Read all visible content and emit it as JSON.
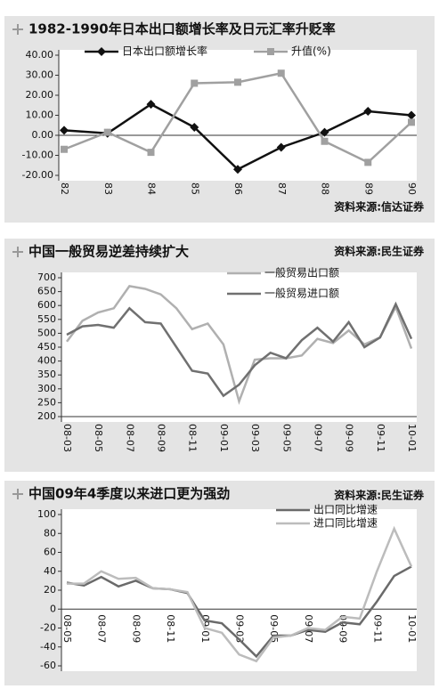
{
  "chart_data": [
    {
      "type": "line",
      "title": "1982-1990年日本出口额增长率及日元汇率升贬率",
      "source": "资料来源:信达证券",
      "categories": [
        "82",
        "83",
        "84",
        "85",
        "86",
        "87",
        "88",
        "89",
        "90"
      ],
      "series": [
        {
          "name": "日本出口额增长率",
          "color": "#111111",
          "marker": "diamond",
          "values": [
            2.5,
            1,
            15.5,
            4,
            -17,
            -6,
            1.5,
            12,
            10
          ]
        },
        {
          "name": "升值(%)",
          "color": "#a0a0a0",
          "marker": "square",
          "values": [
            -7,
            1.5,
            -8.5,
            26,
            26.5,
            31,
            -3,
            -13.5,
            6.5
          ]
        }
      ],
      "ylim": [
        -20,
        40
      ],
      "yticks": [
        {
          "value": -20,
          "label": "-20.00"
        },
        {
          "value": -10,
          "label": "-10.00"
        },
        {
          "value": 0,
          "label": "0.00"
        },
        {
          "value": 10,
          "label": "10.00"
        },
        {
          "value": 20,
          "label": "20.00"
        },
        {
          "value": 30,
          "label": "30.00"
        },
        {
          "value": 40,
          "label": "40.00"
        }
      ]
    },
    {
      "type": "line",
      "title": "中国一般贸易逆差持续扩大",
      "source": "资料来源:民生证券",
      "categories": [
        "08-03",
        null,
        "08-05",
        null,
        "08-07",
        null,
        "08-09",
        null,
        "08-11",
        null,
        "09-01",
        null,
        "09-03",
        null,
        "09-05",
        null,
        "09-07",
        null,
        "09-09",
        null,
        "09-11",
        null,
        "10-01"
      ],
      "series": [
        {
          "name": "一般贸易出口额",
          "color": "#b0b0b0",
          "values": [
            470,
            545,
            575,
            590,
            670,
            660,
            640,
            590,
            515,
            535,
            460,
            255,
            405,
            410,
            410,
            420,
            480,
            465,
            510,
            460,
            485,
            595,
            445
          ]
        },
        {
          "name": "一般贸易进口额",
          "color": "#707070",
          "values": [
            495,
            525,
            530,
            520,
            590,
            540,
            535,
            450,
            365,
            355,
            275,
            315,
            385,
            430,
            410,
            475,
            520,
            470,
            540,
            450,
            485,
            605,
            480
          ]
        }
      ],
      "ylim": [
        200,
        700
      ],
      "yticks": [
        200,
        250,
        300,
        350,
        400,
        450,
        500,
        550,
        600,
        650,
        700
      ]
    },
    {
      "type": "line",
      "title": "中国09年4季度以来进口更为强劲",
      "source": "资料来源:民生证券",
      "categories": [
        "08-05",
        null,
        "08-07",
        null,
        "08-09",
        null,
        "08-11",
        null,
        "09-01",
        null,
        "09-03",
        null,
        "09-05",
        null,
        "09-07",
        null,
        "09-09",
        null,
        "09-11",
        null,
        "10-01"
      ],
      "series": [
        {
          "name": "出口同比增速",
          "color": "#6a6a6a",
          "values": [
            28,
            25,
            34,
            24,
            30,
            22,
            21,
            17,
            -12,
            -15,
            -32,
            -50,
            -28,
            -28,
            -22,
            -24,
            -14,
            -16,
            8,
            35,
            45
          ]
        },
        {
          "name": "进口同比增速",
          "color": "#bcbcbc",
          "values": [
            27,
            27,
            40,
            32,
            33,
            22,
            21,
            18,
            -20,
            -25,
            -48,
            -55,
            -30,
            -28,
            -20,
            -22,
            -8,
            -10,
            40,
            85,
            45
          ]
        }
      ],
      "ylim": [
        -60,
        100
      ],
      "yticks": [
        -60,
        -40,
        -20,
        0,
        20,
        40,
        60,
        80,
        100
      ]
    }
  ]
}
